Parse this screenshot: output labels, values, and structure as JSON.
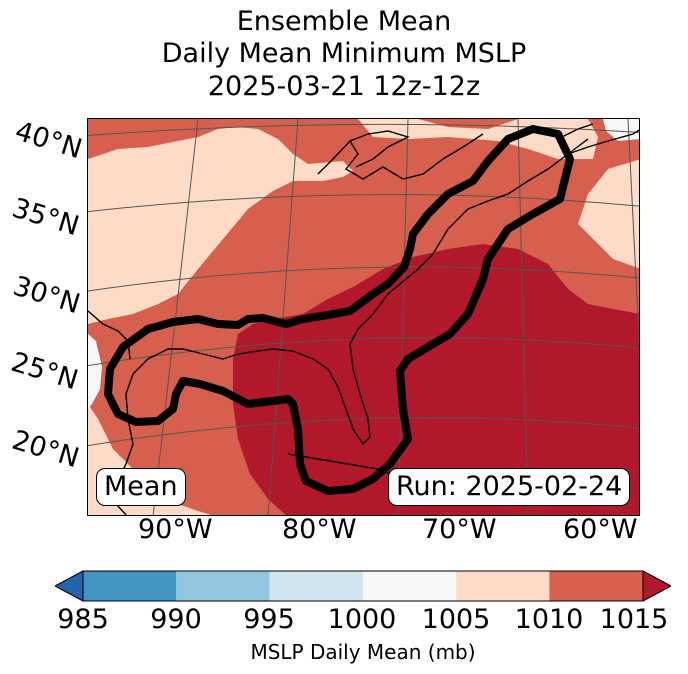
{
  "title": {
    "line1": "Ensemble Mean",
    "line2": "Daily Mean Minimum MSLP",
    "line3": "2025-03-21 12z-12z"
  },
  "map": {
    "lat_labels": [
      "40°N",
      "35°N",
      "30°N",
      "25°N",
      "20°N"
    ],
    "lon_labels": [
      "90°W",
      "80°W",
      "70°W",
      "60°W"
    ],
    "mean_label": "Mean",
    "run_label": "Run: 2025-02-24",
    "fill_colors": {
      "985-990": "#4393c3",
      "990-995": "#92c5de",
      "995-1000": "#d1e5f0",
      "1000-1005": "#f7f7f7",
      "1005-1010": "#fddbc7",
      "1010-1015": "#d6604d",
      "above-1015": "#b2182b"
    },
    "contour_color": "#000000",
    "coastline_color": "#000000"
  },
  "colorbar": {
    "ticks": [
      "985",
      "990",
      "995",
      "1000",
      "1005",
      "1010",
      "1015"
    ],
    "label": "MSLP Daily Mean (mb)",
    "colors": [
      "#4393c3",
      "#92c5de",
      "#d1e5f0",
      "#f7f7f7",
      "#fddbc7",
      "#d6604d"
    ],
    "under_color": "#2166ac",
    "over_color": "#b2182b"
  }
}
